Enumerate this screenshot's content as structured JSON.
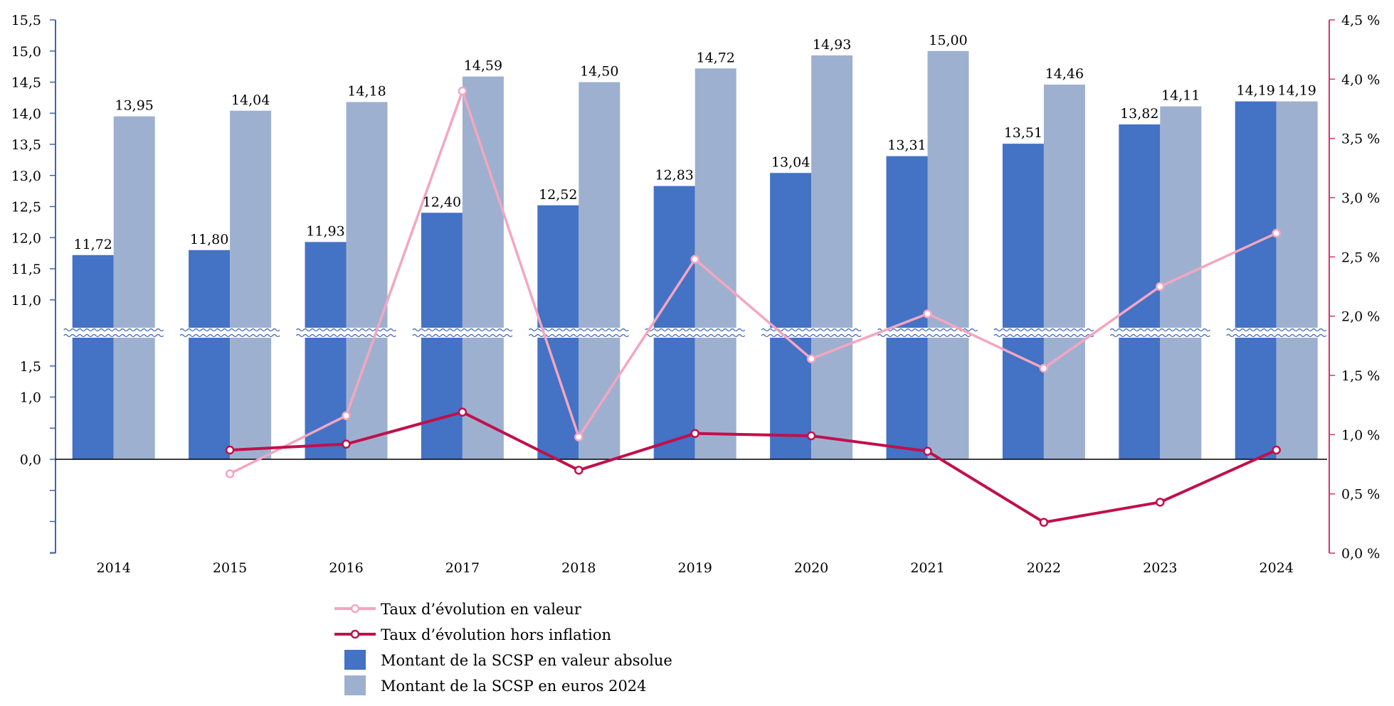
{
  "chart_data": {
    "type": "bar",
    "categories": [
      "2014",
      "2015",
      "2016",
      "2017",
      "2018",
      "2019",
      "2020",
      "2021",
      "2022",
      "2023",
      "2024"
    ],
    "series": [
      {
        "name": "Montant de la SCSP en valeur absolue",
        "kind": "bar",
        "axis": "left",
        "color": "#4472C4",
        "values": [
          11.72,
          11.8,
          11.93,
          12.4,
          12.52,
          12.83,
          13.04,
          13.31,
          13.51,
          13.82,
          14.19
        ],
        "labels": [
          "11,72",
          "11,80",
          "11,93",
          "12,40",
          "12,52",
          "12,83",
          "13,04",
          "13,31",
          "13,51",
          "13,82",
          "14,19"
        ]
      },
      {
        "name": "Montant de la SCSP en euros 2024",
        "kind": "bar",
        "axis": "left",
        "color": "#9EB0D0",
        "values": [
          13.95,
          14.04,
          14.18,
          14.59,
          14.5,
          14.72,
          14.93,
          15.0,
          14.46,
          14.11,
          14.19
        ],
        "labels": [
          "13,95",
          "14,04",
          "14,18",
          "14,59",
          "14,50",
          "14,72",
          "14,93",
          "15,00",
          "14,46",
          "14,11",
          "14,19"
        ]
      },
      {
        "name": "Taux d’évolution en valeur",
        "kind": "line",
        "axis": "right",
        "color": "#F4A6C0",
        "values": [
          null,
          0.67,
          1.16,
          3.9,
          0.98,
          2.48,
          1.64,
          2.02,
          1.56,
          2.25,
          2.7
        ]
      },
      {
        "name": "Taux d’évolution hors inflation",
        "kind": "line",
        "axis": "right",
        "color": "#C0104B",
        "values": [
          null,
          0.87,
          0.92,
          1.19,
          0.7,
          1.01,
          0.99,
          0.86,
          0.26,
          0.43,
          0.87
        ]
      }
    ],
    "left_axis": {
      "color": "#3A66B8",
      "upper_ticks": [
        {
          "value": 15.5,
          "label": "15,5"
        },
        {
          "value": 15.0,
          "label": "15,0"
        },
        {
          "value": 14.5,
          "label": "14,5"
        },
        {
          "value": 14.0,
          "label": "14,0"
        },
        {
          "value": 13.5,
          "label": "13,5"
        },
        {
          "value": 13.0,
          "label": "13,0"
        },
        {
          "value": 12.5,
          "label": "12,5"
        },
        {
          "value": 12.0,
          "label": "12,0"
        },
        {
          "value": 11.5,
          "label": "11,5"
        },
        {
          "value": 11.0,
          "label": "11,0"
        }
      ],
      "lower_ticks": [
        {
          "value": 1.5,
          "label": "1,5"
        },
        {
          "value": 1.0,
          "label": "1,0"
        },
        {
          "value": 0.5,
          "label": ""
        },
        {
          "value": 0.0,
          "label": "0,0"
        },
        {
          "value": -0.5,
          "label": ""
        },
        {
          "value": -1.0,
          "label": ""
        },
        {
          "value": -1.5,
          "label": ""
        }
      ],
      "broken": true
    },
    "right_axis": {
      "color": "#D6336C",
      "ylim": [
        0,
        4.5
      ],
      "ticks": [
        {
          "value": 4.5,
          "label": "4,5 %"
        },
        {
          "value": 4.0,
          "label": "4,0 %"
        },
        {
          "value": 3.5,
          "label": "3,5 %"
        },
        {
          "value": 3.0,
          "label": "3,0 %"
        },
        {
          "value": 2.5,
          "label": "2,5 %"
        },
        {
          "value": 2.0,
          "label": "2,0 %"
        },
        {
          "value": 1.5,
          "label": "1,5 %"
        },
        {
          "value": 1.0,
          "label": "1,0 %"
        },
        {
          "value": 0.5,
          "label": "0,5 %"
        },
        {
          "value": 0.0,
          "label": "0,0 %"
        }
      ]
    },
    "legend": {
      "placement": "bottom-center",
      "entries": [
        {
          "label": "Taux d’évolution en valeur",
          "kind": "line",
          "color": "#F4A6C0"
        },
        {
          "label": "Taux d’évolution hors inflation",
          "kind": "line",
          "color": "#C0104B"
        },
        {
          "label": "Montant de la SCSP en valeur absolue",
          "kind": "bar",
          "color": "#4472C4"
        },
        {
          "label": "Montant de la SCSP en euros 2024",
          "kind": "bar",
          "color": "#9EB0D0"
        }
      ]
    },
    "grid": false
  }
}
